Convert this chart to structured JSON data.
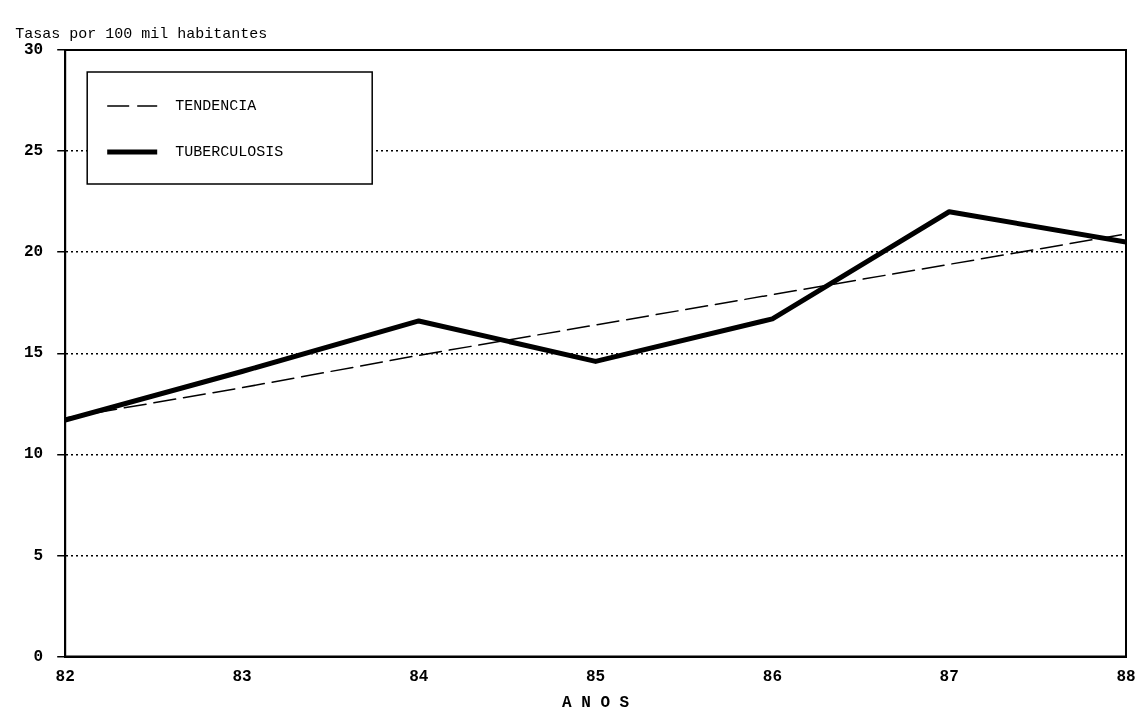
{
  "chart_data": {
    "type": "line",
    "ylabel": "Tasas por 100 mil habitantes",
    "xlabel": "A N O S",
    "x": [
      82,
      83,
      84,
      85,
      86,
      87,
      88
    ],
    "series": [
      {
        "name": "TENDENCIA",
        "color": "#000000",
        "line_style": "dashed",
        "values": [
          11.8,
          13.3,
          14.9,
          16.4,
          17.9,
          19.4,
          20.9
        ]
      },
      {
        "name": "TUBERCULOSIS",
        "color": "#000000",
        "line_style": "solid",
        "values": [
          11.7,
          14.1,
          16.6,
          14.6,
          16.7,
          22.0,
          20.5
        ]
      }
    ],
    "xlim": [
      82,
      88
    ],
    "xticks": [
      82,
      83,
      84,
      85,
      86,
      87,
      88
    ],
    "ylim": [
      0,
      30
    ],
    "yticks": [
      0,
      5,
      10,
      15,
      20,
      25,
      30
    ],
    "grid": "y",
    "legend": "top left",
    "marker": "none"
  }
}
